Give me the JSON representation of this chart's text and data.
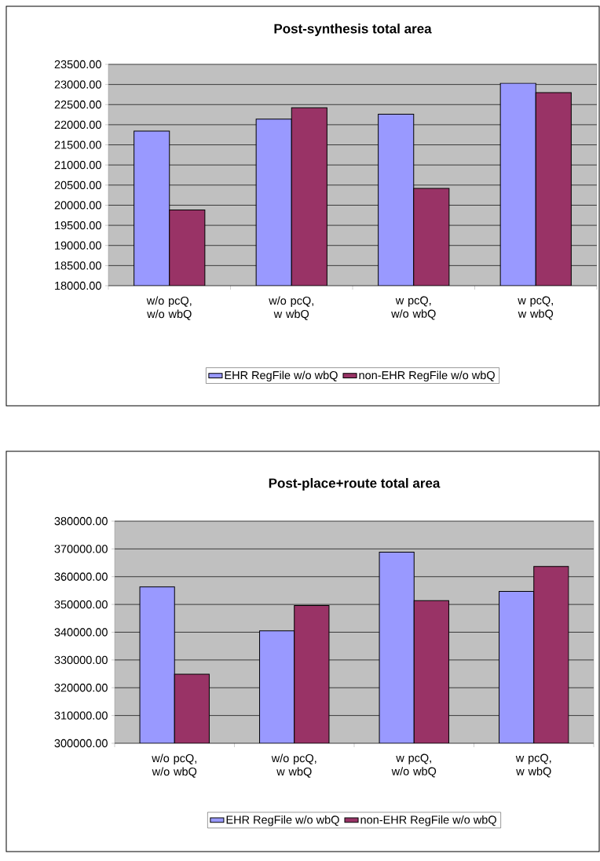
{
  "chart_data": [
    {
      "type": "bar",
      "title": "Post-synthesis total area",
      "categories": [
        "w/o pcQ, w/o wbQ",
        "w/o pcQ, w wbQ",
        "w pcQ, w/o wbQ",
        "w pcQ, w wbQ"
      ],
      "series": [
        {
          "name": "EHR RegFile w/o wbQ",
          "color": "#9999ff",
          "values": [
            21840,
            22140,
            22260,
            23030
          ]
        },
        {
          "name": "non-EHR RegFile w/o wbQ",
          "color": "#993366",
          "values": [
            19880,
            22420,
            20420,
            22800
          ]
        }
      ],
      "ylim": [
        18000,
        23500
      ],
      "yticks": [
        {
          "value": 18000,
          "label": "18000.00"
        },
        {
          "value": 18500,
          "label": "18500.00"
        },
        {
          "value": 19000,
          "label": "19000.00"
        },
        {
          "value": 19500,
          "label": "19500.00"
        },
        {
          "value": 20000,
          "label": "20000.00"
        },
        {
          "value": 20500,
          "label": "20500.00"
        },
        {
          "value": 21000,
          "label": "21000.00"
        },
        {
          "value": 21500,
          "label": "21500.00"
        },
        {
          "value": 22000,
          "label": "22000.00"
        },
        {
          "value": 22500,
          "label": "22500.00"
        },
        {
          "value": 23000,
          "label": "23000.00"
        },
        {
          "value": 23500,
          "label": "23500.00"
        }
      ],
      "grid": "y",
      "legend": "bottom"
    },
    {
      "type": "bar",
      "title": "Post-place+route total area",
      "categories": [
        "w/o pcQ, w/o wbQ",
        "w/o pcQ, w wbQ",
        "w pcQ, w/o wbQ",
        "w pcQ, w wbQ"
      ],
      "series": [
        {
          "name": "EHR RegFile w/o wbQ",
          "color": "#9999ff",
          "values": [
            356300,
            340500,
            368800,
            354700
          ]
        },
        {
          "name": "non-EHR RegFile w/o wbQ",
          "color": "#993366",
          "values": [
            324900,
            349600,
            351400,
            363700
          ]
        }
      ],
      "ylim": [
        300000,
        380000
      ],
      "yticks": [
        {
          "value": 300000,
          "label": "300000.00"
        },
        {
          "value": 310000,
          "label": "310000.00"
        },
        {
          "value": 320000,
          "label": "320000.00"
        },
        {
          "value": 330000,
          "label": "330000.00"
        },
        {
          "value": 340000,
          "label": "340000.00"
        },
        {
          "value": 350000,
          "label": "350000.00"
        },
        {
          "value": 360000,
          "label": "360000.00"
        },
        {
          "value": 370000,
          "label": "370000.00"
        },
        {
          "value": 380000,
          "label": "380000.00"
        }
      ],
      "grid": "y",
      "legend": "bottom"
    }
  ]
}
